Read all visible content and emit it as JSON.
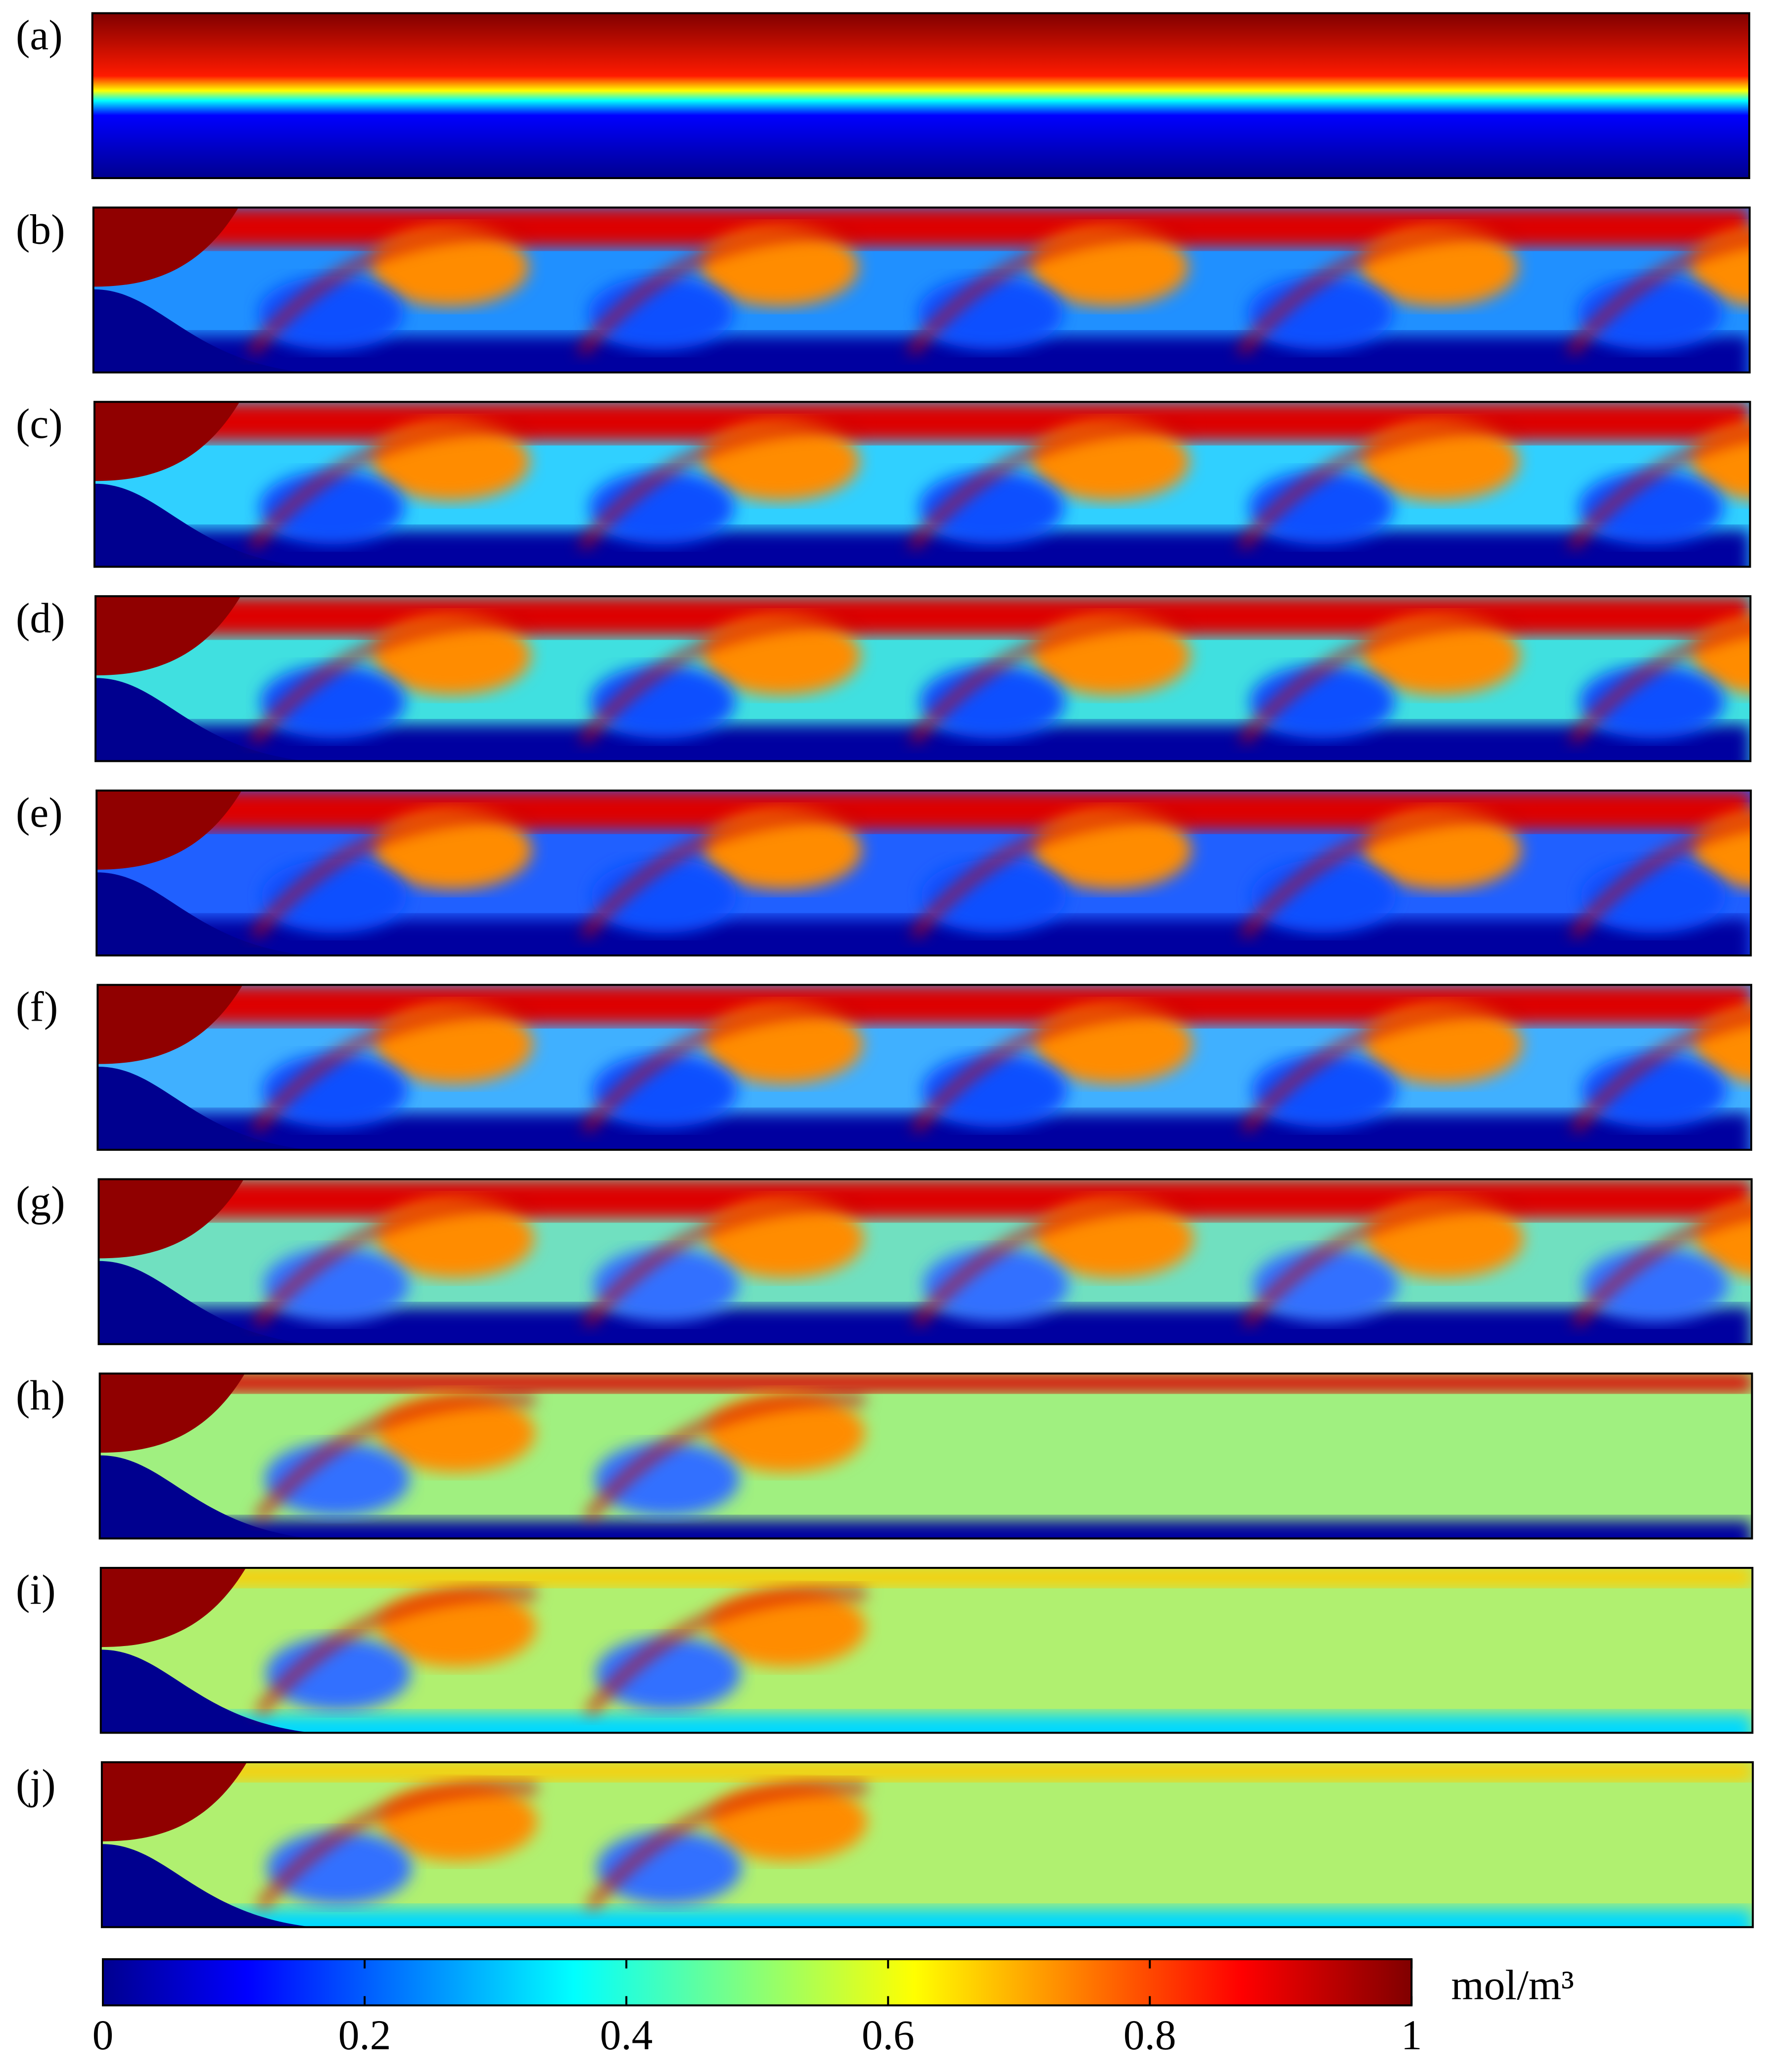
{
  "panels": [
    {
      "label": "(a)"
    },
    {
      "label": "(b)"
    },
    {
      "label": "(c)"
    },
    {
      "label": "(d)"
    },
    {
      "label": "(e)"
    },
    {
      "label": "(f)"
    },
    {
      "label": "(g)"
    },
    {
      "label": "(h)"
    },
    {
      "label": "(i)"
    },
    {
      "label": "(j)"
    }
  ],
  "colorbar": {
    "colormap": "jet",
    "unit": "mol/m³",
    "lim": [
      0,
      1
    ],
    "ticks": [
      0,
      0.2,
      0.4,
      0.6,
      0.8,
      1
    ]
  }
}
